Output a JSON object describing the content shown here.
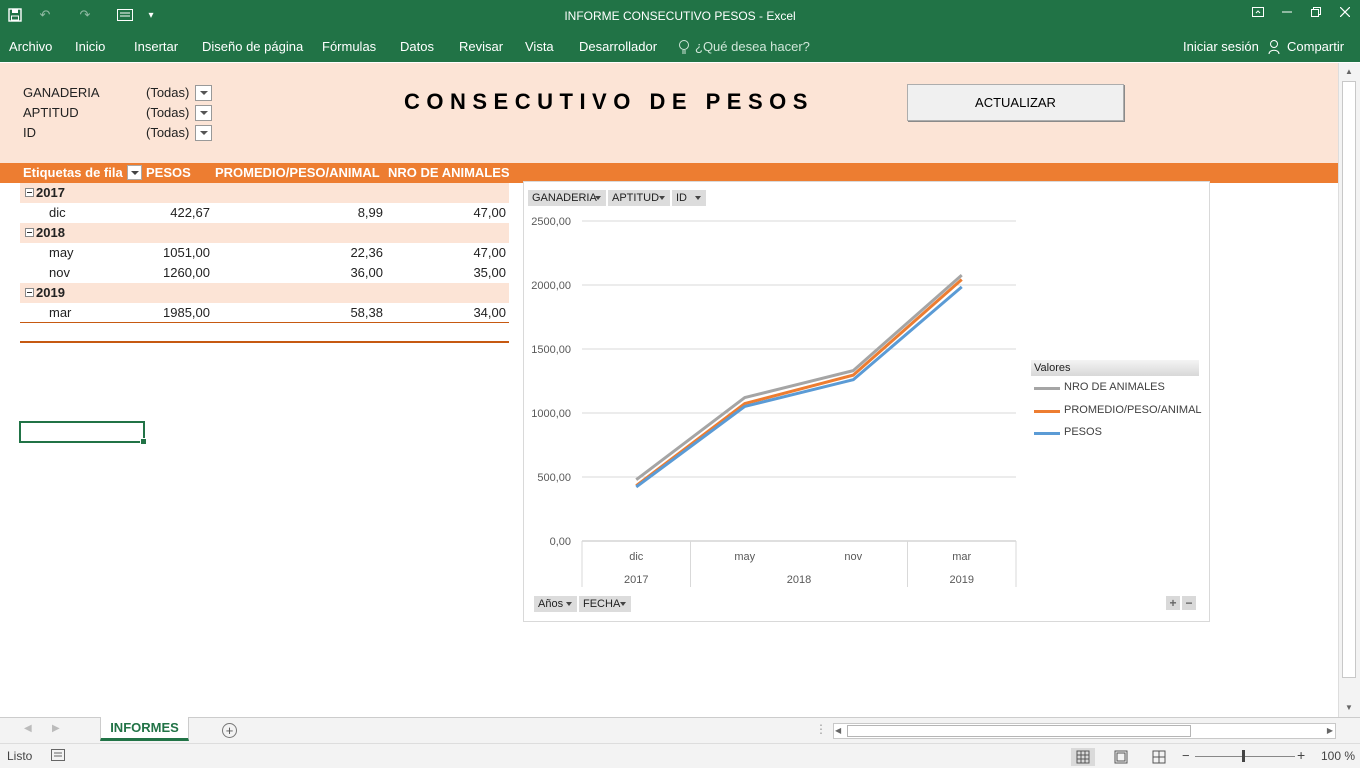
{
  "window": {
    "title": "INFORME CONSECUTIVO PESOS - Excel",
    "qat_icons": [
      "save-icon",
      "undo-icon",
      "redo-icon",
      "form-icon",
      "customize-qat-icon"
    ],
    "controls": [
      "ribbon-display-icon",
      "minimize-icon",
      "restore-icon",
      "close-icon"
    ]
  },
  "ribbon": {
    "tabs": [
      "Archivo",
      "Inicio",
      "Insertar",
      "Diseño de página",
      "Fórmulas",
      "Datos",
      "Revisar",
      "Vista",
      "Desarrollador"
    ],
    "tell_me": "¿Qué desea hacer?",
    "sign_in": "Iniciar sesión",
    "share": "Compartir"
  },
  "filters": [
    {
      "label": "GANADERIA",
      "value": "(Todas)"
    },
    {
      "label": "APTITUD",
      "value": "(Todas)"
    },
    {
      "label": "ID",
      "value": "(Todas)"
    }
  ],
  "report_title": "CONSECUTIVO DE PESOS",
  "update_button": "ACTUALIZAR",
  "pivot": {
    "headers": [
      "Etiquetas de fila",
      "PESOS",
      "PROMEDIO/PESO/ANIMAL",
      "NRO DE ANIMALES"
    ],
    "rows": [
      {
        "type": "year",
        "label": "2017"
      },
      {
        "type": "item",
        "label": "dic",
        "pesos": "422,67",
        "promedio": "8,99",
        "nro": "47,00"
      },
      {
        "type": "year",
        "label": "2018"
      },
      {
        "type": "item",
        "label": "may",
        "pesos": "1051,00",
        "promedio": "22,36",
        "nro": "47,00"
      },
      {
        "type": "item",
        "label": "nov",
        "pesos": "1260,00",
        "promedio": "36,00",
        "nro": "35,00"
      },
      {
        "type": "year",
        "label": "2019"
      },
      {
        "type": "item",
        "label": "mar",
        "pesos": "1985,00",
        "promedio": "58,38",
        "nro": "34,00"
      }
    ]
  },
  "chart_filter_buttons": [
    "GANADERIA",
    "APTITUD",
    "ID"
  ],
  "chart_axis_buttons": [
    "Años",
    "FECHA"
  ],
  "chart_data": {
    "type": "line",
    "categories": [
      "dic",
      "may",
      "nov",
      "mar"
    ],
    "category_groups": [
      {
        "label": "2017",
        "span": 1
      },
      {
        "label": "2018",
        "span": 2
      },
      {
        "label": "2019",
        "span": 1
      }
    ],
    "y_tick_labels": [
      "0,00",
      "500,00",
      "1000,00",
      "1500,00",
      "2000,00",
      "2500,00"
    ],
    "ylim": [
      0,
      2500
    ],
    "grid": true,
    "legend_title": "Valores",
    "legend_position": "right",
    "stacked": true,
    "series": [
      {
        "name": "NRO DE ANIMALES",
        "values": [
          47.0,
          47.0,
          35.0,
          34.0
        ],
        "color": "#a5a5a5"
      },
      {
        "name": "PROMEDIO/PESO/ANIMAL",
        "values": [
          8.99,
          22.36,
          36.0,
          58.38
        ],
        "color": "#ed7d31"
      },
      {
        "name": "PESOS",
        "values": [
          422.67,
          1051.0,
          1260.0,
          1985.0
        ],
        "color": "#5b9bd5"
      }
    ]
  },
  "sheet_tab": "INFORMES",
  "status": {
    "mode": "Listo",
    "zoom": "100 %"
  }
}
